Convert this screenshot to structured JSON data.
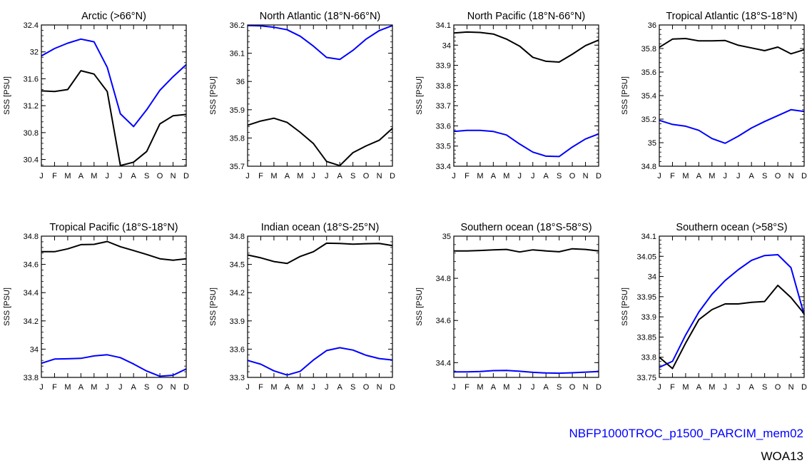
{
  "months": [
    "J",
    "F",
    "M",
    "A",
    "M",
    "J",
    "J",
    "A",
    "S",
    "O",
    "N",
    "D"
  ],
  "ylabel": "SSS [PSU]",
  "colors": {
    "model": "#0000ff",
    "obs": "#000000"
  },
  "legend": {
    "model": "NBFP1000TROC_p1500_PARCIM_mem02",
    "obs": "WOA13"
  },
  "chart_data": [
    {
      "type": "line",
      "title": "Arctic (>66°N)",
      "ylim": [
        30.3,
        32.4
      ],
      "ticks": [
        30.4,
        30.8,
        31.2,
        31.6,
        32,
        32.4
      ],
      "tick_labels": [
        "30.4",
        "30.8",
        "31.2",
        "31.6",
        "32",
        "32.4"
      ],
      "series": [
        {
          "name": "NBFP1000TROC_p1500_PARCIM_mem02",
          "values": [
            31.94,
            32.05,
            32.13,
            32.19,
            32.15,
            31.77,
            31.08,
            30.89,
            31.14,
            31.43,
            31.63,
            31.81
          ]
        },
        {
          "name": "WOA13",
          "values": [
            31.42,
            31.41,
            31.44,
            31.72,
            31.67,
            31.41,
            30.31,
            30.36,
            30.52,
            30.93,
            31.05,
            31.07
          ]
        }
      ]
    },
    {
      "type": "line",
      "title": "North Atlantic (18°N-66°N)",
      "ylim": [
        35.7,
        36.2
      ],
      "ticks": [
        35.7,
        35.8,
        35.9,
        36,
        36.1,
        36.2
      ],
      "tick_labels": [
        "35.7",
        "35.8",
        "35.9",
        "36",
        "36.1",
        "36.2"
      ],
      "series": [
        {
          "name": "NBFP1000TROC_p1500_PARCIM_mem02",
          "values": [
            36.198,
            36.197,
            36.192,
            36.183,
            36.16,
            36.125,
            36.085,
            36.078,
            36.11,
            36.15,
            36.18,
            36.198
          ]
        },
        {
          "name": "WOA13",
          "values": [
            35.845,
            35.86,
            35.87,
            35.855,
            35.82,
            35.78,
            35.717,
            35.702,
            35.748,
            35.772,
            35.792,
            35.834
          ]
        }
      ]
    },
    {
      "type": "line",
      "title": "North Pacific (18°N-66°N)",
      "ylim": [
        33.4,
        34.1
      ],
      "ticks": [
        33.4,
        33.5,
        33.6,
        33.7,
        33.8,
        33.9,
        34,
        34.1
      ],
      "tick_labels": [
        "33.4",
        "33.5",
        "33.6",
        "33.7",
        "33.8",
        "33.9",
        "34",
        "34.1"
      ],
      "series": [
        {
          "name": "NBFP1000TROC_p1500_PARCIM_mem02",
          "values": [
            33.572,
            33.578,
            33.578,
            33.572,
            33.555,
            33.51,
            33.47,
            33.45,
            33.448,
            33.495,
            33.535,
            33.56
          ]
        },
        {
          "name": "WOA13",
          "values": [
            34.06,
            34.065,
            34.063,
            34.055,
            34.03,
            33.995,
            33.94,
            33.92,
            33.916,
            33.955,
            33.998,
            34.025
          ]
        }
      ]
    },
    {
      "type": "line",
      "title": "Tropical Atlantic (18°S-18°N)",
      "ylim": [
        34.8,
        36
      ],
      "ticks": [
        34.8,
        35,
        35.2,
        35.4,
        35.6,
        35.8,
        36
      ],
      "tick_labels": [
        "34.8",
        "35",
        "35.2",
        "35.4",
        "35.6",
        "35.8",
        "36"
      ],
      "series": [
        {
          "name": "NBFP1000TROC_p1500_PARCIM_mem02",
          "values": [
            35.19,
            35.155,
            35.14,
            35.105,
            35.035,
            34.995,
            35.055,
            35.125,
            35.18,
            35.23,
            35.28,
            35.265
          ]
        },
        {
          "name": "WOA13",
          "values": [
            35.81,
            35.88,
            35.885,
            35.865,
            35.865,
            35.868,
            35.828,
            35.805,
            35.782,
            35.812,
            35.755,
            35.79
          ]
        }
      ]
    },
    {
      "type": "line",
      "title": "Tropical Pacific (18°S-18°N)",
      "ylim": [
        33.8,
        34.8
      ],
      "ticks": [
        33.8,
        34,
        34.2,
        34.4,
        34.6,
        34.8
      ],
      "tick_labels": [
        "33.8",
        "34",
        "34.2",
        "34.4",
        "34.6",
        "34.8"
      ],
      "series": [
        {
          "name": "NBFP1000TROC_p1500_PARCIM_mem02",
          "values": [
            33.9,
            33.93,
            33.932,
            33.935,
            33.952,
            33.96,
            33.94,
            33.895,
            33.845,
            33.808,
            33.815,
            33.86
          ]
        },
        {
          "name": "WOA13",
          "values": [
            34.69,
            34.69,
            34.71,
            34.74,
            34.742,
            34.762,
            34.725,
            34.698,
            34.67,
            34.64,
            34.63,
            34.64
          ]
        }
      ]
    },
    {
      "type": "line",
      "title": "Indian ocean (18°S-25°N)",
      "ylim": [
        33.3,
        34.8
      ],
      "ticks": [
        33.3,
        33.6,
        33.9,
        34.2,
        34.5,
        34.8
      ],
      "tick_labels": [
        "33.3",
        "33.6",
        "33.9",
        "34.2",
        "34.5",
        "34.8"
      ],
      "series": [
        {
          "name": "NBFP1000TROC_p1500_PARCIM_mem02",
          "values": [
            33.48,
            33.44,
            33.37,
            33.325,
            33.365,
            33.485,
            33.585,
            33.615,
            33.59,
            33.535,
            33.5,
            33.485
          ]
        },
        {
          "name": "WOA13",
          "values": [
            34.6,
            34.57,
            34.53,
            34.51,
            34.585,
            34.635,
            34.725,
            34.722,
            34.715,
            34.72,
            34.722,
            34.7
          ]
        }
      ]
    },
    {
      "type": "line",
      "title": "Southern ocean (18°S-58°S)",
      "ylim": [
        34.33,
        35
      ],
      "ticks": [
        34.4,
        34.6,
        34.8,
        35
      ],
      "tick_labels": [
        "34.4",
        "34.6",
        "34.8",
        "35"
      ],
      "series": [
        {
          "name": "NBFP1000TROC_p1500_PARCIM_mem02",
          "values": [
            34.356,
            34.356,
            34.358,
            34.362,
            34.363,
            34.359,
            34.354,
            34.351,
            34.35,
            34.352,
            34.355,
            34.358
          ]
        },
        {
          "name": "WOA13",
          "values": [
            34.93,
            34.93,
            34.932,
            34.935,
            34.937,
            34.925,
            34.935,
            34.93,
            34.926,
            34.94,
            34.937,
            34.93
          ]
        }
      ]
    },
    {
      "type": "line",
      "title": "Southern ocean (>58°S)",
      "ylim": [
        33.75,
        34.1
      ],
      "ticks": [
        33.75,
        33.8,
        33.85,
        33.9,
        33.95,
        34,
        34.05,
        34.1
      ],
      "tick_labels": [
        "33.75",
        "33.8",
        "33.85",
        "33.9",
        "33.95",
        "34",
        "34.05",
        "34.1"
      ],
      "series": [
        {
          "name": "NBFP1000TROC_p1500_PARCIM_mem02",
          "values": [
            33.775,
            33.79,
            33.855,
            33.912,
            33.956,
            33.99,
            34.017,
            34.04,
            34.052,
            34.054,
            34.022,
            33.905
          ]
        },
        {
          "name": "WOA13",
          "values": [
            33.8,
            33.772,
            33.835,
            33.893,
            33.918,
            33.932,
            33.932,
            33.936,
            33.938,
            33.978,
            33.948,
            33.908
          ]
        }
      ]
    }
  ]
}
